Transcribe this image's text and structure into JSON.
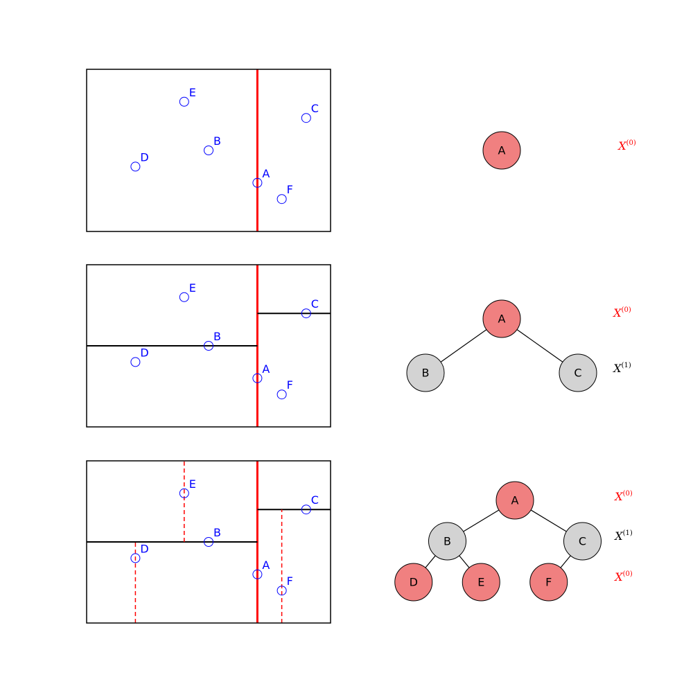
{
  "colors": {
    "point": "#0000ff",
    "root_split": "#ff0000",
    "x_split": "#ff0000",
    "y_split": "#000000",
    "x_node_fill": "#f08080",
    "y_node_fill": "#d3d3d3",
    "frame": "#000000"
  },
  "points": [
    {
      "label": "A",
      "x": 7,
      "y": 2
    },
    {
      "label": "B",
      "x": 5,
      "y": 4
    },
    {
      "label": "C",
      "x": 9,
      "y": 6
    },
    {
      "label": "D",
      "x": 2,
      "y": 3
    },
    {
      "label": "E",
      "x": 4,
      "y": 7
    },
    {
      "label": "F",
      "x": 8,
      "y": 1
    }
  ],
  "axis_range": {
    "x": [
      0,
      10
    ],
    "y": [
      -1,
      9
    ]
  },
  "levels": {
    "x_dim": {
      "base": "X",
      "sup": "(0)"
    },
    "y_dim": {
      "base": "X",
      "sup": "(1)"
    }
  },
  "panels": [
    {
      "splits": [
        {
          "type": "root",
          "axis": "x",
          "value": 7,
          "range": [
            -1,
            9
          ]
        }
      ],
      "tree": {
        "nodes": [
          {
            "label": "A",
            "kind": "x",
            "col": 0,
            "row": 0
          }
        ],
        "edges": [],
        "level_labels": [
          {
            "row": 0,
            "dim": "x_dim"
          }
        ]
      }
    },
    {
      "splits": [
        {
          "type": "root",
          "axis": "x",
          "value": 7,
          "range": [
            -1,
            9
          ]
        },
        {
          "type": "y",
          "axis": "y",
          "value": 4,
          "range": [
            0,
            7
          ]
        },
        {
          "type": "y",
          "axis": "y",
          "value": 6,
          "range": [
            7,
            10
          ]
        }
      ],
      "tree": {
        "nodes": [
          {
            "label": "A",
            "kind": "x",
            "col": 0,
            "row": 0
          },
          {
            "label": "B",
            "kind": "y",
            "col": -1,
            "row": 1
          },
          {
            "label": "C",
            "kind": "y",
            "col": 1,
            "row": 1
          }
        ],
        "edges": [
          [
            "A",
            "B"
          ],
          [
            "A",
            "C"
          ]
        ],
        "level_labels": [
          {
            "row": 0,
            "dim": "x_dim"
          },
          {
            "row": 1,
            "dim": "y_dim"
          }
        ]
      }
    },
    {
      "splits": [
        {
          "type": "root",
          "axis": "x",
          "value": 7,
          "range": [
            -1,
            9
          ]
        },
        {
          "type": "y",
          "axis": "y",
          "value": 4,
          "range": [
            0,
            7
          ]
        },
        {
          "type": "y",
          "axis": "y",
          "value": 6,
          "range": [
            7,
            10
          ]
        },
        {
          "type": "x",
          "axis": "x",
          "value": 2,
          "range": [
            -1,
            4
          ]
        },
        {
          "type": "x",
          "axis": "x",
          "value": 4,
          "range": [
            4,
            9
          ]
        },
        {
          "type": "x",
          "axis": "x",
          "value": 8,
          "range": [
            -1,
            6
          ]
        }
      ],
      "tree": {
        "nodes": [
          {
            "label": "A",
            "kind": "x",
            "col": 0,
            "row": 0
          },
          {
            "label": "B",
            "kind": "y",
            "col": -1,
            "row": 1
          },
          {
            "label": "C",
            "kind": "y",
            "col": 1,
            "row": 1
          },
          {
            "label": "D",
            "kind": "x",
            "col": -1.5,
            "row": 2
          },
          {
            "label": "E",
            "kind": "x",
            "col": -0.5,
            "row": 2
          },
          {
            "label": "F",
            "kind": "x",
            "col": 0.5,
            "row": 2
          }
        ],
        "edges": [
          [
            "A",
            "B"
          ],
          [
            "A",
            "C"
          ],
          [
            "B",
            "D"
          ],
          [
            "B",
            "E"
          ],
          [
            "C",
            "F"
          ]
        ],
        "level_labels": [
          {
            "row": 0,
            "dim": "x_dim"
          },
          {
            "row": 1,
            "dim": "y_dim"
          },
          {
            "row": 2,
            "dim": "x_dim"
          }
        ]
      }
    }
  ]
}
